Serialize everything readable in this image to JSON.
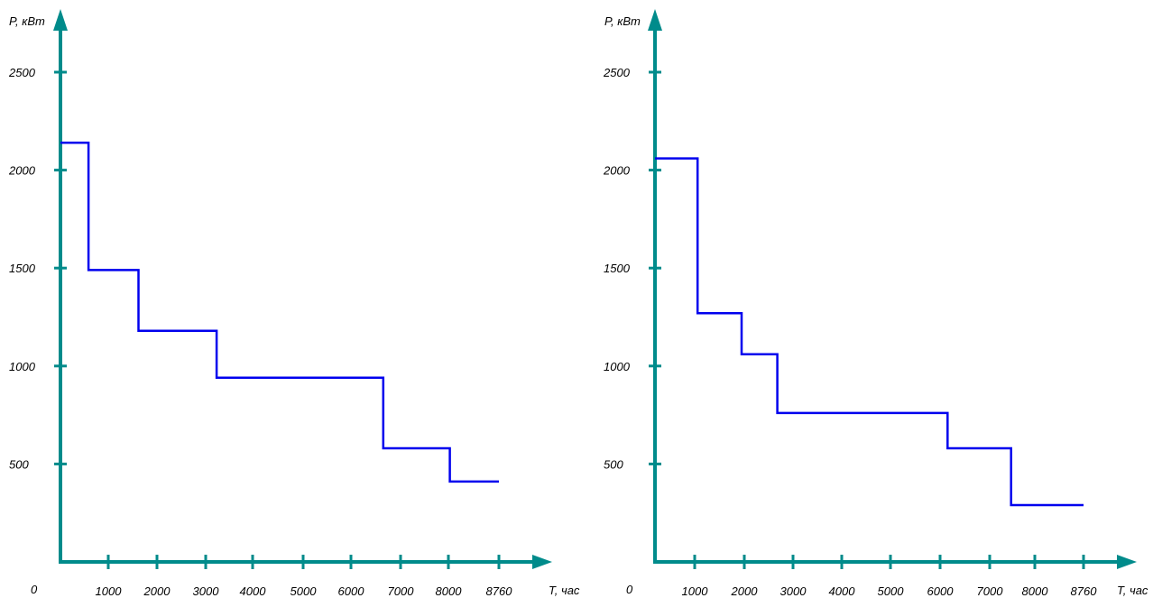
{
  "chart_data": [
    {
      "type": "line",
      "step": true,
      "xlabel": "T, час",
      "ylabel": "P, кВт",
      "origin_label": "0",
      "x_ticks": [
        1000,
        2000,
        3000,
        4000,
        5000,
        6000,
        7000,
        8000,
        8760
      ],
      "y_ticks": [
        500,
        1000,
        1500,
        2000,
        2500
      ],
      "xlim": [
        0,
        8760
      ],
      "ylim": [
        0,
        2500
      ],
      "axis_color": "#008B8B",
      "series_color": "#0000EE",
      "series": [
        {
          "x": [
            0,
            560,
            560,
            1560,
            1560,
            3120,
            3120,
            6450,
            6450,
            7780,
            7780,
            8760
          ],
          "values": [
            2140,
            2140,
            1490,
            1490,
            1180,
            1180,
            940,
            940,
            580,
            580,
            410,
            410
          ]
        }
      ]
    },
    {
      "type": "line",
      "step": true,
      "xlabel": "T, час",
      "ylabel": "P, кВт",
      "origin_label": "0",
      "x_ticks": [
        1000,
        2000,
        3000,
        4000,
        5000,
        6000,
        7000,
        8000,
        8760
      ],
      "y_ticks": [
        500,
        1000,
        1500,
        2000,
        2500
      ],
      "xlim": [
        0,
        8760
      ],
      "ylim": [
        0,
        2500
      ],
      "axis_color": "#008B8B",
      "series_color": "#0000EE",
      "series": [
        {
          "x": [
            0,
            870,
            870,
            1770,
            1770,
            2500,
            2500,
            5980,
            5980,
            7280,
            7280,
            8760
          ],
          "values": [
            2060,
            2060,
            1270,
            1270,
            1060,
            1060,
            760,
            760,
            580,
            580,
            290,
            290
          ]
        }
      ]
    }
  ]
}
